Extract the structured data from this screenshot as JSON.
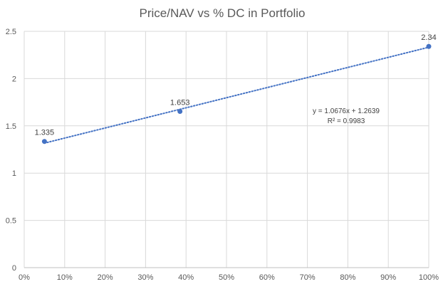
{
  "chart_data": {
    "type": "scatter",
    "title": "Price/NAV vs % DC in Portfolio",
    "xlabel": "",
    "ylabel": "",
    "xlim": [
      0,
      1
    ],
    "ylim": [
      0,
      2.5
    ],
    "x_ticks": [
      "0%",
      "10%",
      "20%",
      "30%",
      "40%",
      "50%",
      "60%",
      "70%",
      "80%",
      "90%",
      "100%"
    ],
    "y_ticks": [
      "0",
      "0.5",
      "1",
      "1.5",
      "2",
      "2.5"
    ],
    "grid": true,
    "legend": "none",
    "series": [
      {
        "points": [
          {
            "x": 0.05,
            "y": 1.335,
            "label": "1.335"
          },
          {
            "x": 0.385,
            "y": 1.653,
            "label": "1.653"
          },
          {
            "x": 1.0,
            "y": 2.34,
            "label": "2.34"
          }
        ],
        "color": "#4472c4"
      }
    ],
    "trendline": {
      "type": "linear",
      "slope": 1.0676,
      "intercept": 1.2639,
      "equation": "y = 1.0676x + 1.2639",
      "r_squared": "R² = 0.9983",
      "style": "dotted",
      "color": "#4472c4"
    }
  }
}
